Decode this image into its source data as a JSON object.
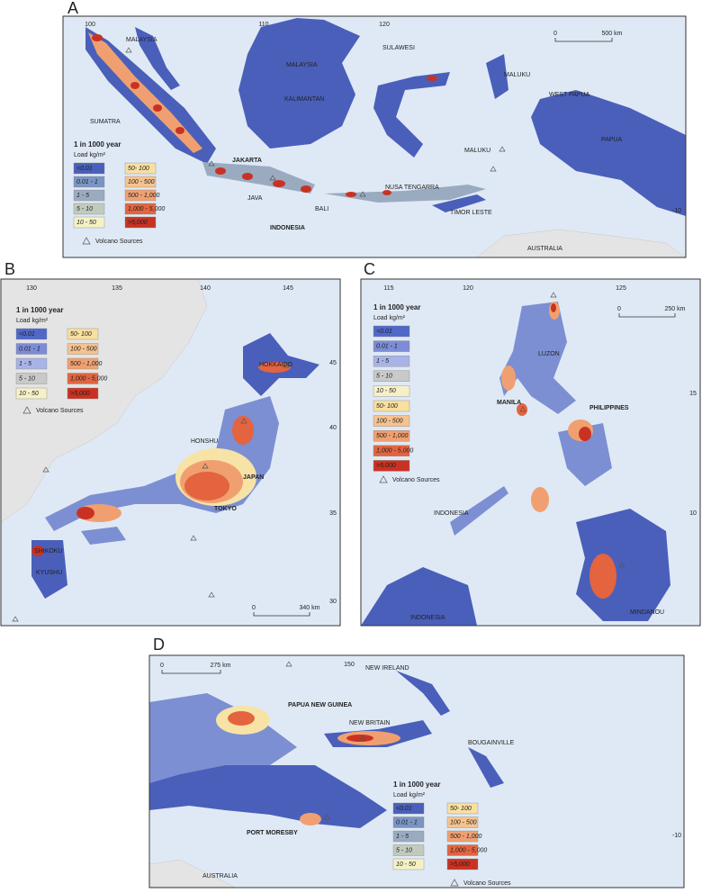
{
  "panels": [
    {
      "label": "A",
      "legend": {
        "title": "1 in 1000 year",
        "unit": "Load kg/m²",
        "volcano": "Volcano Sources",
        "items": [
          {
            "label": "<0.01",
            "color": "#4a5fba"
          },
          {
            "label": "0.01 - 1",
            "color": "#7a95c4"
          },
          {
            "label": "1 - 5",
            "color": "#9aabc0"
          },
          {
            "label": "5 - 10",
            "color": "#c2cabd"
          },
          {
            "label": "10 - 50",
            "color": "#f4f1c4"
          },
          {
            "label": "50- 100",
            "color": "#f9dfa0"
          },
          {
            "label": "100 - 500",
            "color": "#f6c28e"
          },
          {
            "label": "500 - 1,000",
            "color": "#f0a070"
          },
          {
            "label": "1,000 - 5,000",
            "color": "#e3643f"
          },
          {
            "label": ">5,000",
            "color": "#c93222"
          }
        ]
      },
      "places": [
        "MALAYSIA",
        "MALAYSIA",
        "KALIMANTAN",
        "SUMATRA",
        "SULAWESI",
        "MALUKU",
        "WEST PAPUA",
        "PAPUA",
        "MALUKU",
        "JAKARTA",
        "JAVA",
        "BALI",
        "NUSA TENGARRA",
        "TIMOR LESTE",
        "INDONESIA",
        "AUSTRALIA"
      ],
      "lon_ticks": [
        100,
        110,
        120
      ],
      "lat_ticks": [
        -10
      ],
      "scale": {
        "start": "0",
        "end": "500 km"
      }
    },
    {
      "label": "B",
      "legend": {
        "title": "1 in 1000 year",
        "unit": "Load kg/m²",
        "volcano": "Volcano Sources",
        "items": [
          {
            "label": "<0.01",
            "color": "#5068c8"
          },
          {
            "label": "0.01 - 1",
            "color": "#7c8cd6"
          },
          {
            "label": "1 - 5",
            "color": "#a8b4e8"
          },
          {
            "label": "5 - 10",
            "color": "#c9c9c9"
          },
          {
            "label": "10 - 50",
            "color": "#f5f0c8"
          },
          {
            "label": "50- 100",
            "color": "#f9dfa0"
          },
          {
            "label": "100 - 500",
            "color": "#f6c28e"
          },
          {
            "label": "500 - 1,000",
            "color": "#f0a070"
          },
          {
            "label": "1,000 - 5,000",
            "color": "#e3643f"
          },
          {
            "label": ">5,000",
            "color": "#c93222"
          }
        ]
      },
      "places": [
        "HOKKAIDO",
        "HONSHU",
        "JAPAN",
        "TOKYO",
        "SHIKOKU",
        "KYUSHU"
      ],
      "lon_ticks": [
        130,
        135,
        140,
        145
      ],
      "lat_ticks": [
        45,
        40,
        35,
        30
      ],
      "scale": {
        "start": "0",
        "end": "340 km"
      }
    },
    {
      "label": "C",
      "legend": {
        "title": "1 in 1000 year",
        "unit": "Load kg/m²",
        "volcano": "Volcano Sources",
        "items": [
          {
            "label": "<0.01",
            "color": "#5068c8"
          },
          {
            "label": "0.01 - 1",
            "color": "#7c8cd6"
          },
          {
            "label": "1 - 5",
            "color": "#a8b4e8"
          },
          {
            "label": "5 - 10",
            "color": "#c9c9c9"
          },
          {
            "label": "10 - 50",
            "color": "#f5f0c8"
          },
          {
            "label": "50- 100",
            "color": "#f9dfa0"
          },
          {
            "label": "100 - 500",
            "color": "#f6c28e"
          },
          {
            "label": "500 - 1,000",
            "color": "#f0a070"
          },
          {
            "label": "1,000 - 5,000",
            "color": "#e3643f"
          },
          {
            "label": ">5,000",
            "color": "#c93222"
          }
        ]
      },
      "places": [
        "LUZON",
        "MANILA",
        "PHILIPPINES",
        "INDONESIA",
        "INDONESIA",
        "MINDANOU"
      ],
      "lon_ticks": [
        115,
        120,
        125
      ],
      "lat_ticks": [
        15,
        10
      ],
      "scale": {
        "start": "0",
        "end": "250 km"
      }
    },
    {
      "label": "D",
      "legend": {
        "title": "1 in 1000 year",
        "unit": "Load kg/m²",
        "volcano": "Volcano Sources",
        "items": [
          {
            "label": "<0.01",
            "color": "#4a5fba"
          },
          {
            "label": "0.01 - 1",
            "color": "#7a95c4"
          },
          {
            "label": "1 - 5",
            "color": "#9aabc0"
          },
          {
            "label": "5 - 10",
            "color": "#c2cabd"
          },
          {
            "label": "10 - 50",
            "color": "#f4f1c4"
          },
          {
            "label": "50- 100",
            "color": "#f9dfa0"
          },
          {
            "label": "100 - 500",
            "color": "#f6c28e"
          },
          {
            "label": "500 - 1,000",
            "color": "#f0a070"
          },
          {
            "label": "1,000 - 5,000",
            "color": "#e3643f"
          },
          {
            "label": ">5,000",
            "color": "#c93222"
          }
        ]
      },
      "places": [
        "PAPUA NEW GUINEA",
        "NEW IRELAND",
        "NEW BRITAIN",
        "BOUGAINVILLE",
        "PORT MORESBY",
        "AUSTRALIA"
      ],
      "lon_ticks": [
        150
      ],
      "lat_ticks": [
        -10
      ],
      "scale": {
        "start": "0",
        "end": "275 km"
      }
    }
  ]
}
